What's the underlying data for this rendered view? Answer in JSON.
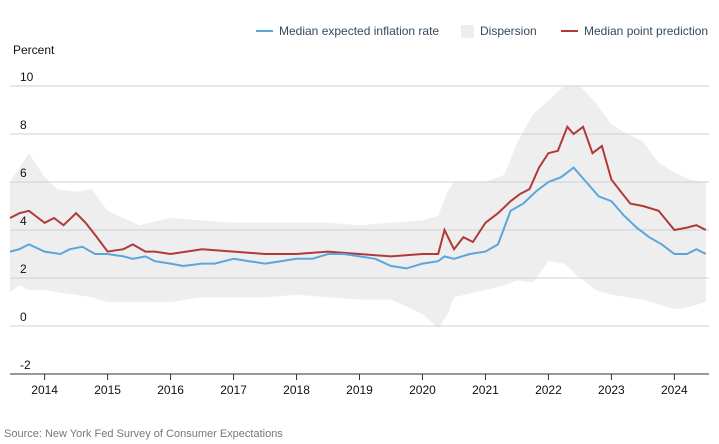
{
  "chart_data": {
    "type": "line",
    "ylabel": "Percent",
    "ylim": [
      -2,
      10
    ],
    "yticks": [
      -2,
      0,
      2,
      4,
      6,
      8,
      10
    ],
    "xlim": [
      2013.45,
      2024.55
    ],
    "xticks": [
      {
        "label": "2014",
        "value": 2014.0
      },
      {
        "label": "2015",
        "value": 2015.0
      },
      {
        "label": "2016",
        "value": 2016.0
      },
      {
        "label": "2017",
        "value": 2017.0
      },
      {
        "label": "2018",
        "value": 2018.0
      },
      {
        "label": "2019",
        "value": 2019.0
      },
      {
        "label": "2020",
        "value": 2020.0
      },
      {
        "label": "2021",
        "value": 2021.0
      },
      {
        "label": "2022",
        "value": 2022.0
      },
      {
        "label": "2023",
        "value": 2023.0
      },
      {
        "label": "2024",
        "value": 2024.0
      }
    ],
    "grid": true,
    "legend_position": "top-right",
    "source": "Source: New York Fed Survey of Consumer Expectations",
    "dispersion": {
      "name": "Dispersion",
      "color": "#eeeeee",
      "x": [
        2013.45,
        2013.6,
        2013.75,
        2014.0,
        2014.2,
        2014.5,
        2014.75,
        2015.0,
        2015.5,
        2016.0,
        2016.5,
        2017.0,
        2017.5,
        2018.0,
        2018.5,
        2019.0,
        2019.5,
        2020.0,
        2020.25,
        2020.4,
        2020.5,
        2021.0,
        2021.3,
        2021.5,
        2021.75,
        2022.0,
        2022.25,
        2022.5,
        2022.75,
        2023.0,
        2023.25,
        2023.5,
        2023.75,
        2024.0,
        2024.25,
        2024.5
      ],
      "upper": [
        6.0,
        6.6,
        7.2,
        6.2,
        5.7,
        5.6,
        5.7,
        4.8,
        4.2,
        4.5,
        4.4,
        4.3,
        4.3,
        4.3,
        4.3,
        4.2,
        4.3,
        4.4,
        4.6,
        5.6,
        6.0,
        6.0,
        6.3,
        7.6,
        8.8,
        9.4,
        10.0,
        10.0,
        9.3,
        8.4,
        8.0,
        7.7,
        6.8,
        6.4,
        6.1,
        6.0
      ],
      "lower": [
        1.4,
        1.7,
        1.5,
        1.5,
        1.4,
        1.3,
        1.2,
        1.0,
        1.0,
        1.0,
        1.2,
        1.2,
        1.2,
        1.3,
        1.2,
        1.1,
        1.1,
        0.5,
        -0.1,
        0.5,
        1.2,
        1.5,
        1.7,
        1.9,
        1.8,
        2.7,
        2.6,
        2.0,
        1.5,
        1.3,
        1.2,
        1.1,
        0.9,
        0.7,
        0.8,
        1.0
      ]
    },
    "series": [
      {
        "name": "Median expected inflation rate",
        "color": "#5aa6dc",
        "x": [
          2013.45,
          2013.6,
          2013.75,
          2014.0,
          2014.25,
          2014.4,
          2014.6,
          2014.8,
          2015.0,
          2015.25,
          2015.4,
          2015.6,
          2015.75,
          2016.0,
          2016.2,
          2016.5,
          2016.7,
          2017.0,
          2017.25,
          2017.5,
          2017.75,
          2018.0,
          2018.25,
          2018.5,
          2018.75,
          2019.0,
          2019.25,
          2019.5,
          2019.75,
          2020.0,
          2020.25,
          2020.35,
          2020.5,
          2020.75,
          2021.0,
          2021.2,
          2021.4,
          2021.6,
          2021.8,
          2022.0,
          2022.2,
          2022.4,
          2022.6,
          2022.8,
          2023.0,
          2023.2,
          2023.4,
          2023.6,
          2023.8,
          2024.0,
          2024.2,
          2024.35,
          2024.5
        ],
        "values": [
          3.1,
          3.2,
          3.4,
          3.1,
          3.0,
          3.2,
          3.3,
          3.0,
          3.0,
          2.9,
          2.8,
          2.9,
          2.7,
          2.6,
          2.5,
          2.6,
          2.6,
          2.8,
          2.7,
          2.6,
          2.7,
          2.8,
          2.8,
          3.0,
          3.0,
          2.9,
          2.8,
          2.5,
          2.4,
          2.6,
          2.7,
          2.9,
          2.8,
          3.0,
          3.1,
          3.4,
          4.8,
          5.1,
          5.6,
          6.0,
          6.2,
          6.6,
          6.0,
          5.4,
          5.2,
          4.6,
          4.1,
          3.7,
          3.4,
          3.0,
          3.0,
          3.2,
          3.0
        ]
      },
      {
        "name": "Median point prediction",
        "color": "#b03a3a",
        "x": [
          2013.45,
          2013.6,
          2013.75,
          2013.9,
          2014.0,
          2014.15,
          2014.3,
          2014.5,
          2014.65,
          2014.8,
          2015.0,
          2015.25,
          2015.4,
          2015.6,
          2015.75,
          2016.0,
          2016.5,
          2017.0,
          2017.5,
          2018.0,
          2018.5,
          2019.0,
          2019.5,
          2020.0,
          2020.25,
          2020.35,
          2020.5,
          2020.65,
          2020.8,
          2021.0,
          2021.2,
          2021.4,
          2021.55,
          2021.7,
          2021.85,
          2022.0,
          2022.15,
          2022.3,
          2022.4,
          2022.55,
          2022.7,
          2022.85,
          2023.0,
          2023.15,
          2023.3,
          2023.5,
          2023.75,
          2024.0,
          2024.2,
          2024.35,
          2024.5
        ],
        "values": [
          4.5,
          4.7,
          4.8,
          4.5,
          4.3,
          4.5,
          4.2,
          4.7,
          4.3,
          3.8,
          3.1,
          3.2,
          3.4,
          3.1,
          3.1,
          3.0,
          3.2,
          3.1,
          3.0,
          3.0,
          3.1,
          3.0,
          2.9,
          3.0,
          3.0,
          4.0,
          3.2,
          3.7,
          3.5,
          4.3,
          4.7,
          5.2,
          5.5,
          5.7,
          6.6,
          7.2,
          7.3,
          8.3,
          8.0,
          8.3,
          7.2,
          7.5,
          6.1,
          5.6,
          5.1,
          5.0,
          4.8,
          4.0,
          4.1,
          4.2,
          4.0
        ]
      }
    ]
  }
}
